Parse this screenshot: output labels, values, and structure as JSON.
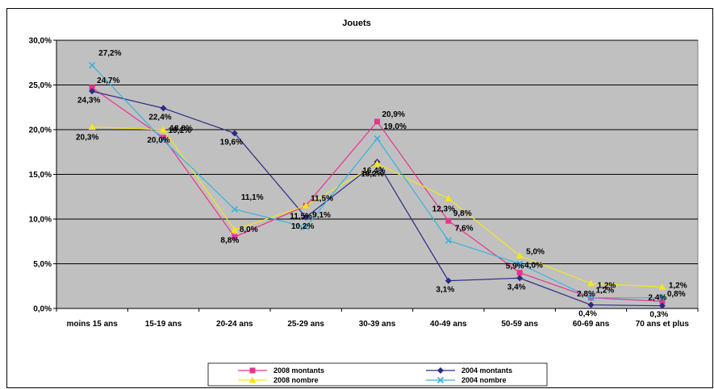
{
  "chart_data": {
    "type": "line",
    "title": "Jouets",
    "categories": [
      "moins 15 ans",
      "15-19 ans",
      "20-24 ans",
      "25-29 ans",
      "30-39 ans",
      "40-49 ans",
      "50-59 ans",
      "60-69 ans",
      "70 ans et plus"
    ],
    "ylim": [
      0,
      30
    ],
    "yticks": [
      "0,0%",
      "5,0%",
      "10,0%",
      "15,0%",
      "20,0%",
      "25,0%",
      "30,0%"
    ],
    "grid": true,
    "legend_position": "bottom",
    "series": [
      {
        "name": "2008 montants",
        "color": "#e8348f",
        "marker": "square",
        "values": [
          24.7,
          19.1,
          8.0,
          11.5,
          20.9,
          9.8,
          4.0,
          1.2,
          0.8
        ],
        "labels": [
          "24,7%",
          "19,1%",
          "8,0%",
          "11,5%",
          "20,9%",
          "9,8%",
          "4,0%",
          "1,2%",
          "0,8%"
        ]
      },
      {
        "name": "2004 montants",
        "color": "#2b2b85",
        "marker": "diamond",
        "values": [
          24.3,
          22.4,
          19.6,
          10.2,
          16.4,
          3.1,
          3.4,
          0.4,
          0.3
        ],
        "labels": [
          "24,3%",
          "22,4%",
          "19,6%",
          "10,2%",
          "16,4%",
          "3,1%",
          "3,4%",
          "0,4%",
          "0,3%"
        ]
      },
      {
        "name": "2008 nombre",
        "color": "#f3e61c",
        "marker": "triangle",
        "values": [
          20.3,
          20.0,
          8.8,
          11.5,
          16.2,
          12.3,
          5.9,
          2.8,
          2.4
        ],
        "labels": [
          "20,3%",
          "20,0%",
          "8,8%",
          "11,5%",
          "16,2%",
          "12,3%",
          "5,9%",
          "2,8%",
          "2,4%"
        ]
      },
      {
        "name": "2004 nombre",
        "color": "#34b4dc",
        "marker": "x",
        "values": [
          27.2,
          18.8,
          11.1,
          9.1,
          19.0,
          7.6,
          5.0,
          1.2,
          1.2
        ],
        "labels": [
          "27,2%",
          "18,8%",
          "11,1%",
          "9,1%",
          "19,0%",
          "7,6%",
          "5,0%",
          "1,2%",
          "1,2%"
        ]
      }
    ]
  }
}
